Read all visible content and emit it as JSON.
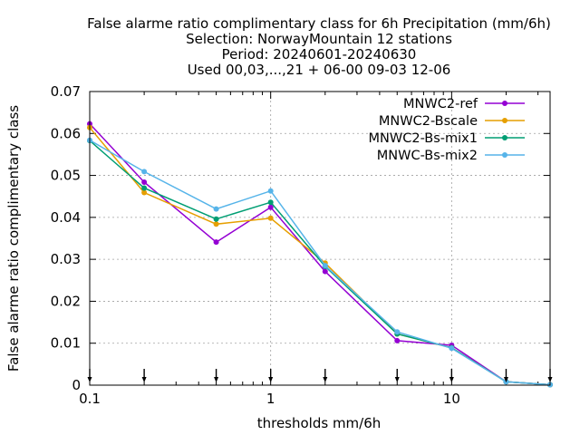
{
  "chart_data": {
    "type": "line",
    "title": [
      "False alarme ratio complimentary class  for 6h Precipitation (mm/6h)",
      "Selection: NorwayMountain     12 stations",
      "Period: 20240601-20240630",
      "Used 00,03,...,21 + 06-00 09-03 12-06"
    ],
    "xlabel": "thresholds mm/6h",
    "ylabel": "False alarme ratio complimentary class",
    "xscale": "log",
    "xlim": [
      0.1,
      35
    ],
    "ylim": [
      0,
      0.07
    ],
    "xticks": [
      {
        "value": 0.1,
        "label": "0.1"
      },
      {
        "value": 1,
        "label": "1"
      },
      {
        "value": 10,
        "label": "10"
      }
    ],
    "yticks": [
      {
        "value": 0,
        "label": "0"
      },
      {
        "value": 0.01,
        "label": "0.01"
      },
      {
        "value": 0.02,
        "label": "0.02"
      },
      {
        "value": 0.03,
        "label": "0.03"
      },
      {
        "value": 0.04,
        "label": "0.04"
      },
      {
        "value": 0.05,
        "label": "0.05"
      },
      {
        "value": 0.06,
        "label": "0.06"
      },
      {
        "value": 0.07,
        "label": "0.07"
      }
    ],
    "grid": true,
    "legend_position": "top-right",
    "x": [
      0.1,
      0.2,
      0.5,
      1,
      2,
      5,
      10,
      20,
      35
    ],
    "series": [
      {
        "name": "MNWC2-ref",
        "color": "#9400d3",
        "values": [
          0.0623,
          0.0484,
          0.0341,
          0.0424,
          0.0271,
          0.0106,
          0.0095,
          0.0008,
          0.0001
        ]
      },
      {
        "name": "MNWC2-Bscale",
        "color": "#e69f00",
        "values": [
          0.0614,
          0.0459,
          0.0384,
          0.0398,
          0.0291,
          0.0122,
          0.0089,
          0.0008,
          0.0001
        ]
      },
      {
        "name": "MNWC2-Bs-mix1",
        "color": "#009e73",
        "values": [
          0.0583,
          0.047,
          0.0396,
          0.0436,
          0.0283,
          0.0122,
          0.0089,
          0.0008,
          0.0001
        ]
      },
      {
        "name": "MNWC-Bs-mix2",
        "color": "#56b4e9",
        "values": [
          0.0584,
          0.0509,
          0.042,
          0.0463,
          0.0285,
          0.0127,
          0.0088,
          0.0008,
          0.0001
        ]
      }
    ],
    "event_markers_x": [
      0.1,
      0.2,
      0.5,
      1,
      2,
      5,
      10,
      20,
      35
    ]
  }
}
